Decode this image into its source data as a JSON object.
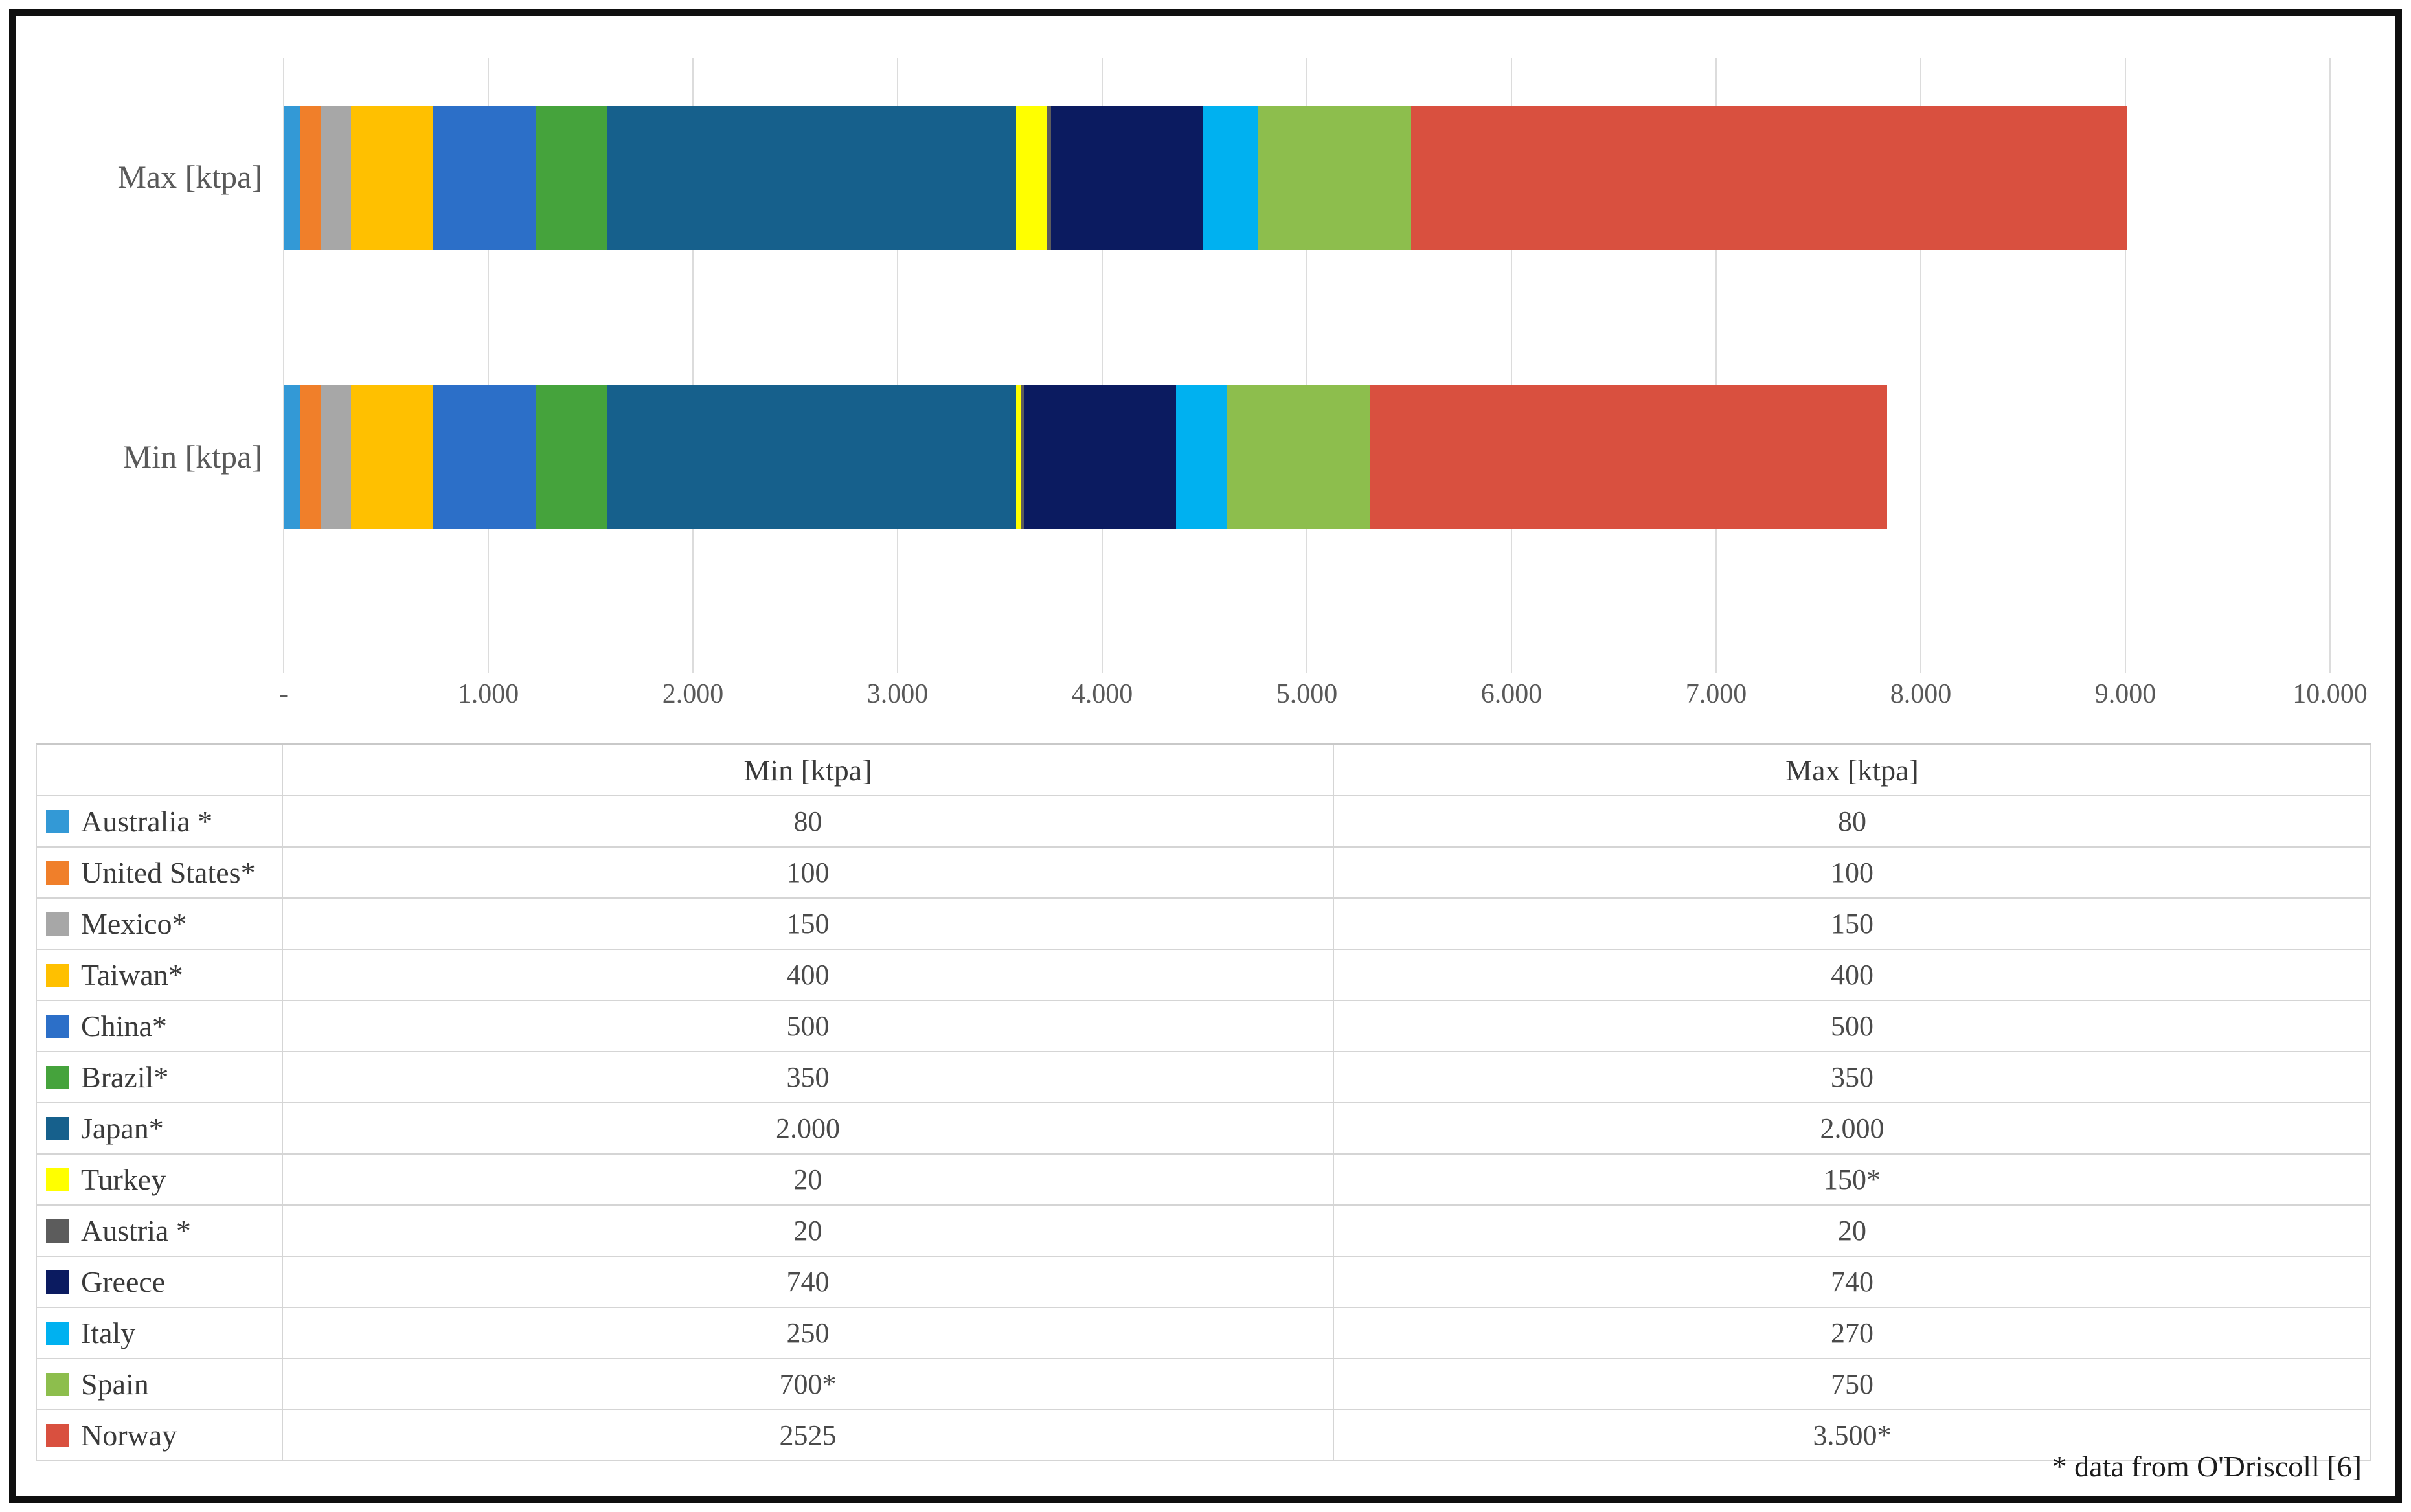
{
  "figure": {
    "footnote": "* data from O'Driscoll [6]"
  },
  "chart_data": {
    "type": "bar",
    "orientation": "horizontal",
    "stacked": true,
    "title": "",
    "xlabel": "",
    "ylabel": "",
    "xlim": [
      0,
      10000
    ],
    "grid": true,
    "categories": [
      "Max [ktpa]",
      "Min [ktpa]"
    ],
    "x_ticks": [
      "-",
      "1.000",
      "2.000",
      "3.000",
      "4.000",
      "5.000",
      "6.000",
      "7.000",
      "8.000",
      "9.000",
      "10.000"
    ],
    "x_tick_values": [
      0,
      1000,
      2000,
      3000,
      4000,
      5000,
      6000,
      7000,
      8000,
      9000,
      10000
    ],
    "series": [
      {
        "name": "Australia *",
        "color": "#3399d6",
        "min": 80,
        "max": 80,
        "min_text": "80",
        "max_text": "80"
      },
      {
        "name": "United States*",
        "color": "#f07f2a",
        "min": 100,
        "max": 100,
        "min_text": "100",
        "max_text": "100"
      },
      {
        "name": "Mexico*",
        "color": "#a7a7a7",
        "min": 150,
        "max": 150,
        "min_text": "150",
        "max_text": "150"
      },
      {
        "name": "Taiwan*",
        "color": "#ffc000",
        "min": 400,
        "max": 400,
        "min_text": "400",
        "max_text": "400"
      },
      {
        "name": "China*",
        "color": "#2c6fc8",
        "min": 500,
        "max": 500,
        "min_text": "500",
        "max_text": "500"
      },
      {
        "name": "Brazil*",
        "color": "#45a33c",
        "min": 350,
        "max": 350,
        "min_text": "350",
        "max_text": "350"
      },
      {
        "name": "Japan*",
        "color": "#16608c",
        "min": 2000,
        "max": 2000,
        "min_text": "2.000",
        "max_text": "2.000"
      },
      {
        "name": "Turkey",
        "color": "#ffff00",
        "min": 20,
        "max": 150,
        "min_text": "20",
        "max_text": "150*"
      },
      {
        "name": "Austria *",
        "color": "#5c5c5c",
        "min": 20,
        "max": 20,
        "min_text": "20",
        "max_text": "20"
      },
      {
        "name": "Greece",
        "color": "#0b1b60",
        "min": 740,
        "max": 740,
        "min_text": "740",
        "max_text": "740"
      },
      {
        "name": "Italy",
        "color": "#00b1f0",
        "min": 250,
        "max": 270,
        "min_text": "250",
        "max_text": "270"
      },
      {
        "name": "Spain",
        "color": "#8dbe4d",
        "min": 700,
        "max": 750,
        "min_text": "700*",
        "max_text": "750"
      },
      {
        "name": "Norway",
        "color": "#d9503f",
        "min": 2525,
        "max": 3500,
        "min_text": "2525",
        "max_text": "3.500*"
      }
    ]
  },
  "table": {
    "columns": [
      "",
      "Min [ktpa]",
      "Max [ktpa]"
    ]
  }
}
